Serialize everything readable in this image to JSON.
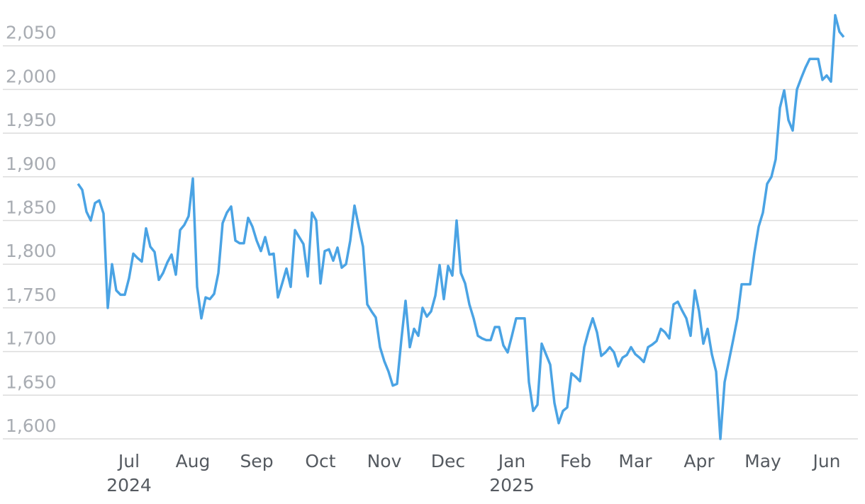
{
  "chart_data": {
    "type": "line",
    "series": [
      {
        "color": "#4aa3e4",
        "values": [
          1892,
          1885,
          1860,
          1850,
          1870,
          1873,
          1858,
          1750,
          1800,
          1770,
          1765,
          1765,
          1784,
          1812,
          1807,
          1803,
          1841,
          1820,
          1814,
          1782,
          1790,
          1802,
          1811,
          1788,
          1839,
          1845,
          1855,
          1898,
          1774,
          1738,
          1762,
          1760,
          1766,
          1790,
          1847,
          1859,
          1866,
          1827,
          1824,
          1824,
          1853,
          1843,
          1827,
          1815,
          1831,
          1811,
          1812,
          1762,
          1778,
          1795,
          1774,
          1839,
          1831,
          1823,
          1786,
          1859,
          1850,
          1778,
          1815,
          1817,
          1804,
          1819,
          1796,
          1800,
          1827,
          1867,
          1843,
          1820,
          1754,
          1746,
          1739,
          1705,
          1689,
          1677,
          1661,
          1663,
          1713,
          1758,
          1705,
          1726,
          1718,
          1750,
          1740,
          1746,
          1764,
          1799,
          1760,
          1798,
          1787,
          1850,
          1790,
          1778,
          1754,
          1738,
          1718,
          1715,
          1713,
          1713,
          1728,
          1728,
          1707,
          1699,
          1718,
          1738,
          1738,
          1738,
          1665,
          1632,
          1639,
          1709,
          1697,
          1685,
          1641,
          1618,
          1632,
          1636,
          1675,
          1671,
          1666,
          1705,
          1723,
          1738,
          1722,
          1695,
          1699,
          1705,
          1699,
          1683,
          1693,
          1696,
          1705,
          1697,
          1693,
          1688,
          1705,
          1708,
          1712,
          1726,
          1722,
          1715,
          1754,
          1757,
          1747,
          1738,
          1718,
          1770,
          1746,
          1709,
          1726,
          1697,
          1677,
          1600,
          1665,
          1689,
          1713,
          1738,
          1777,
          1777,
          1777,
          1813,
          1843,
          1859,
          1892,
          1900,
          1920,
          1979,
          1999,
          1965,
          1953,
          2000,
          2013,
          2025,
          2035,
          2035,
          2035,
          2011,
          2016,
          2009,
          2085,
          2066,
          2060
        ]
      }
    ],
    "xlim": [
      0,
      180
    ],
    "xticks": [
      {
        "value": 12,
        "label": "Jul"
      },
      {
        "value": 27,
        "label": "Aug"
      },
      {
        "value": 42,
        "label": "Sep"
      },
      {
        "value": 57,
        "label": "Oct"
      },
      {
        "value": 72,
        "label": "Nov"
      },
      {
        "value": 87,
        "label": "Dec"
      },
      {
        "value": 102,
        "label": "Jan"
      },
      {
        "value": 117,
        "label": "Feb"
      },
      {
        "value": 131,
        "label": "Mar"
      },
      {
        "value": 146,
        "label": "Apr"
      },
      {
        "value": 161,
        "label": "May"
      },
      {
        "value": 176,
        "label": "Jun"
      }
    ],
    "year_ticks": [
      {
        "value": 12,
        "label": "2024"
      },
      {
        "value": 102,
        "label": "2025"
      }
    ],
    "ylim": [
      1600,
      2100
    ],
    "yticks": [
      {
        "value": 1600,
        "label": "1,600"
      },
      {
        "value": 1650,
        "label": "1,650"
      },
      {
        "value": 1700,
        "label": "1,700"
      },
      {
        "value": 1750,
        "label": "1,750"
      },
      {
        "value": 1800,
        "label": "1,800"
      },
      {
        "value": 1850,
        "label": "1,850"
      },
      {
        "value": 1900,
        "label": "1,900"
      },
      {
        "value": 1950,
        "label": "1,950"
      },
      {
        "value": 2000,
        "label": "2,000"
      },
      {
        "value": 2050,
        "label": "2,050"
      }
    ],
    "grid": true
  }
}
